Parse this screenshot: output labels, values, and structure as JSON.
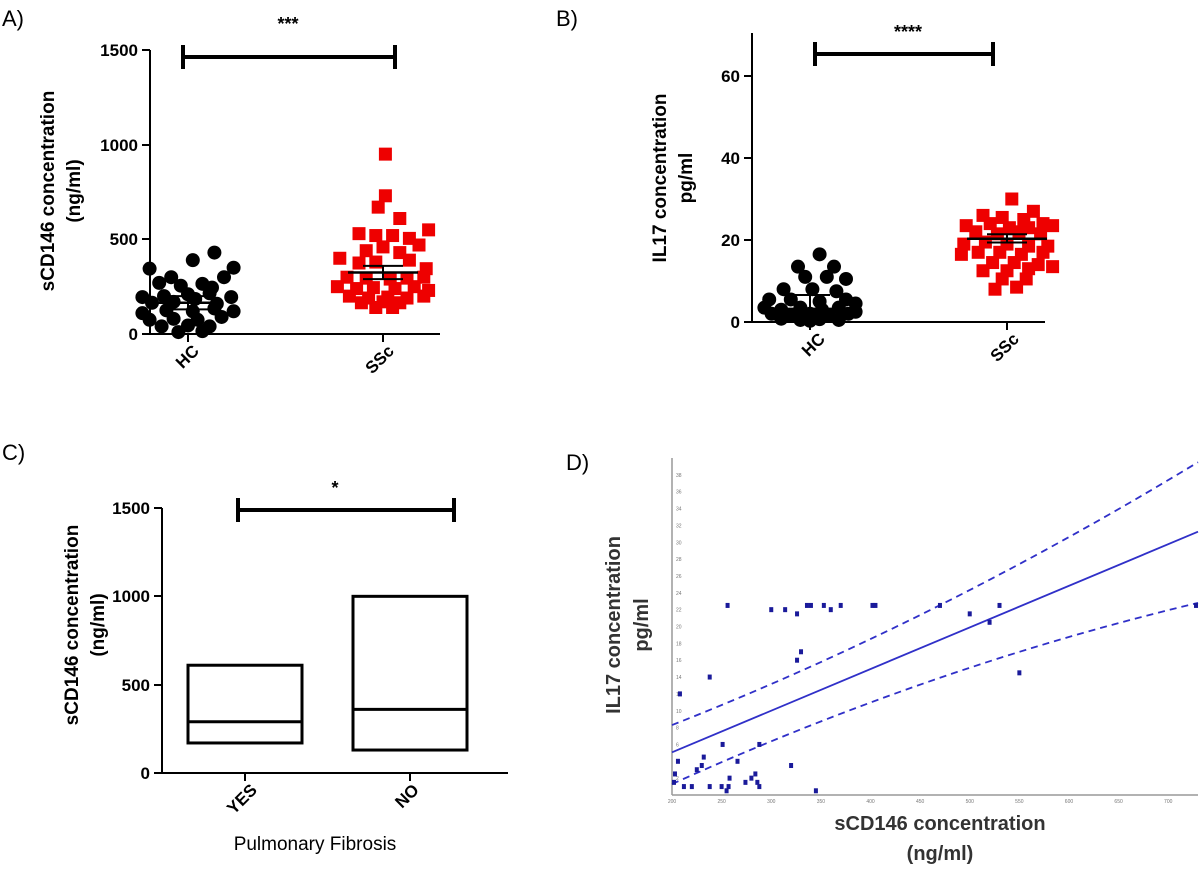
{
  "chart_data": [
    {
      "panel": "A)",
      "type": "scatter",
      "ylabel_line1": "sCD146 concentration",
      "ylabel_line2": "(ng/ml)",
      "ylim": [
        0,
        1500
      ],
      "yticks": [
        "0",
        "500",
        "1000",
        "1500"
      ],
      "categories": [
        "HC",
        "SSc"
      ],
      "significance": "***",
      "colors": [
        "#000000",
        "#ee0000"
      ],
      "markers": [
        "circle",
        "square"
      ],
      "series": [
        {
          "name": "HC",
          "mean": 165,
          "err_low": 130,
          "err_high": 200,
          "points": [
            [
              -0.8,
              345
            ],
            [
              -0.35,
              300
            ],
            [
              0.1,
              390
            ],
            [
              0.55,
              430
            ],
            [
              0.95,
              350
            ],
            [
              -0.6,
              270
            ],
            [
              -0.15,
              255
            ],
            [
              0.3,
              265
            ],
            [
              0.75,
              300
            ],
            [
              0.5,
              245
            ],
            [
              -0.95,
              195
            ],
            [
              -0.5,
              200
            ],
            [
              0,
              210
            ],
            [
              0.45,
              215
            ],
            [
              0.9,
              195
            ],
            [
              -0.75,
              165
            ],
            [
              -0.3,
              170
            ],
            [
              0.15,
              185
            ],
            [
              0.6,
              160
            ],
            [
              -0.95,
              110
            ],
            [
              -0.45,
              125
            ],
            [
              0.1,
              120
            ],
            [
              0.55,
              135
            ],
            [
              0.95,
              120
            ],
            [
              -0.8,
              75
            ],
            [
              -0.3,
              80
            ],
            [
              0.2,
              75
            ],
            [
              0.7,
              90
            ],
            [
              -0.55,
              40
            ],
            [
              0,
              45
            ],
            [
              0.45,
              40
            ],
            [
              -0.2,
              10
            ],
            [
              0.3,
              15
            ]
          ]
        },
        {
          "name": "SSc",
          "mean": 325,
          "err_low": 290,
          "err_high": 360,
          "points": [
            [
              0.05,
              950
            ],
            [
              0.05,
              730
            ],
            [
              -0.1,
              670
            ],
            [
              0.35,
              610
            ],
            [
              -0.5,
              530
            ],
            [
              -0.15,
              520
            ],
            [
              0.2,
              520
            ],
            [
              0.55,
              505
            ],
            [
              0.95,
              550
            ],
            [
              -0.35,
              440
            ],
            [
              0,
              460
            ],
            [
              0.35,
              430
            ],
            [
              0.75,
              470
            ],
            [
              -0.9,
              400
            ],
            [
              -0.5,
              375
            ],
            [
              -0.15,
              380
            ],
            [
              0.55,
              390
            ],
            [
              0.9,
              345
            ],
            [
              -0.75,
              300
            ],
            [
              -0.35,
              295
            ],
            [
              0.15,
              290
            ],
            [
              0.5,
              295
            ],
            [
              0.85,
              300
            ],
            [
              -0.95,
              250
            ],
            [
              -0.55,
              240
            ],
            [
              -0.2,
              245
            ],
            [
              0.25,
              240
            ],
            [
              0.65,
              250
            ],
            [
              0.95,
              230
            ],
            [
              -0.7,
              200
            ],
            [
              -0.3,
              190
            ],
            [
              0.1,
              195
            ],
            [
              0.5,
              190
            ],
            [
              0.85,
              200
            ],
            [
              -0.45,
              165
            ],
            [
              0,
              170
            ],
            [
              0.35,
              165
            ],
            [
              -0.15,
              140
            ],
            [
              0.2,
              140
            ]
          ]
        }
      ]
    },
    {
      "panel": "B)",
      "type": "scatter",
      "ylabel_line1": "IL17 concentration",
      "ylabel_line2": "pg/ml",
      "ylim": [
        0,
        70
      ],
      "yticks": [
        "0",
        "20",
        "40",
        "60"
      ],
      "categories": [
        "HC",
        "SSc"
      ],
      "significance": "****",
      "colors": [
        "#000000",
        "#ee0000"
      ],
      "markers": [
        "circle",
        "square"
      ],
      "series": [
        {
          "name": "HC",
          "mean": 3.2,
          "err_low": 0,
          "err_high": 6.6,
          "points": [
            [
              0.2,
              16.5
            ],
            [
              -0.25,
              13.5
            ],
            [
              0.5,
              13.5
            ],
            [
              -0.1,
              11
            ],
            [
              0.35,
              11
            ],
            [
              0.75,
              10.5
            ],
            [
              -0.55,
              8
            ],
            [
              0.05,
              8
            ],
            [
              0.55,
              7.5
            ],
            [
              -0.85,
              5.5
            ],
            [
              -0.4,
              5.5
            ],
            [
              0.2,
              5
            ],
            [
              0.75,
              5.5
            ],
            [
              0.95,
              4.5
            ],
            [
              -0.95,
              3.5
            ],
            [
              -0.6,
              3
            ],
            [
              -0.2,
              3.5
            ],
            [
              0.25,
              3
            ],
            [
              0.6,
              3.5
            ],
            [
              0.95,
              2.5
            ],
            [
              -0.8,
              2
            ],
            [
              -0.4,
              1.5
            ],
            [
              0,
              2
            ],
            [
              0.4,
              1.5
            ],
            [
              0.8,
              2
            ],
            [
              -0.6,
              0.8
            ],
            [
              -0.2,
              0.5
            ],
            [
              0.2,
              0.7
            ],
            [
              0.6,
              0.5
            ],
            [
              0,
              0.3
            ]
          ]
        },
        {
          "name": "SSc",
          "mean": 20.3,
          "err_low": 19.4,
          "err_high": 21.4,
          "points": [
            [
              0.1,
              30
            ],
            [
              0.55,
              27
            ],
            [
              -0.5,
              26
            ],
            [
              -0.1,
              25.5
            ],
            [
              0.35,
              25
            ],
            [
              0.75,
              24
            ],
            [
              -0.85,
              23.5
            ],
            [
              -0.35,
              24
            ],
            [
              0.05,
              23
            ],
            [
              0.45,
              23
            ],
            [
              0.95,
              23.5
            ],
            [
              -0.65,
              22
            ],
            [
              -0.2,
              21.5
            ],
            [
              0.25,
              22
            ],
            [
              0.7,
              21.5
            ],
            [
              -0.9,
              19
            ],
            [
              -0.45,
              19.5
            ],
            [
              0,
              19
            ],
            [
              0.45,
              18.5
            ],
            [
              0.85,
              18.5
            ],
            [
              -0.95,
              16.5
            ],
            [
              -0.6,
              17
            ],
            [
              -0.15,
              17
            ],
            [
              0.3,
              16.5
            ],
            [
              0.75,
              17
            ],
            [
              -0.3,
              14.5
            ],
            [
              0.15,
              14.5
            ],
            [
              0.65,
              14
            ],
            [
              0.95,
              13.5
            ],
            [
              -0.5,
              12.5
            ],
            [
              0,
              12.5
            ],
            [
              0.45,
              13
            ],
            [
              -0.1,
              10.5
            ],
            [
              0.4,
              10.5
            ],
            [
              -0.25,
              8
            ],
            [
              0.2,
              8.5
            ]
          ]
        }
      ]
    },
    {
      "panel": "C)",
      "type": "box",
      "ylabel_line1": "sCD146 concentration",
      "ylabel_line2": "(ng/ml)",
      "xlabel": "Pulmonary Fibrosis",
      "ylim": [
        0,
        1500
      ],
      "yticks": [
        "0",
        "500",
        "1000",
        "1500"
      ],
      "categories": [
        "YES",
        "NO"
      ],
      "significance": "*",
      "boxes": [
        {
          "name": "YES",
          "min": 170,
          "median": 290,
          "max": 610
        },
        {
          "name": "NO",
          "min": 130,
          "median": 360,
          "max": 1000
        }
      ]
    },
    {
      "panel": "D)",
      "type": "scatter",
      "ylabel_line1": "IL17 concentration",
      "ylabel_line2": "pg/ml",
      "xlabel_line1": "sCD146 concentration",
      "xlabel_line2": "(ng/ml)",
      "xlim": [
        200,
        730
      ],
      "ylim": [
        0,
        40
      ],
      "xticks": [
        "200",
        "250",
        "300",
        "350",
        "400",
        "450",
        "500",
        "550",
        "600",
        "650",
        "700"
      ],
      "yticks": [
        "2",
        "4",
        "6",
        "8",
        "10",
        "12",
        "14",
        "16",
        "18",
        "20",
        "22",
        "24",
        "26",
        "28",
        "30",
        "32",
        "34",
        "36",
        "38"
      ],
      "color": "#3030c8",
      "regression": {
        "slope": 0.0494,
        "intercept": -4.81,
        "ci_low_start": 1.3,
        "ci_low_end": 22.8,
        "ci_high_start": 8.3,
        "ci_high_end": 39.5
      },
      "points": [
        [
          203,
          2.5
        ],
        [
          202,
          1.5
        ],
        [
          206,
          4
        ],
        [
          208,
          12
        ],
        [
          212,
          1
        ],
        [
          220,
          1
        ],
        [
          225,
          3
        ],
        [
          230,
          3.5
        ],
        [
          232,
          4.5
        ],
        [
          238,
          1
        ],
        [
          238,
          14
        ],
        [
          250,
          1
        ],
        [
          251,
          6
        ],
        [
          255,
          0.5
        ],
        [
          256,
          22.5
        ],
        [
          257,
          1
        ],
        [
          258,
          2
        ],
        [
          266,
          4
        ],
        [
          274,
          1.5
        ],
        [
          280,
          2
        ],
        [
          284,
          2.5
        ],
        [
          286,
          1.5
        ],
        [
          288,
          6
        ],
        [
          288,
          1
        ],
        [
          300,
          22
        ],
        [
          314,
          22
        ],
        [
          320,
          3.5
        ],
        [
          326,
          21.5
        ],
        [
          326,
          16
        ],
        [
          330,
          17
        ],
        [
          336,
          22.5
        ],
        [
          340,
          22.5
        ],
        [
          345,
          0.5
        ],
        [
          353,
          22.5
        ],
        [
          360,
          22
        ],
        [
          370,
          22.5
        ],
        [
          402,
          22.5
        ],
        [
          405,
          22.5
        ],
        [
          470,
          22.5
        ],
        [
          500,
          21.5
        ],
        [
          520,
          20.5
        ],
        [
          530,
          22.5
        ],
        [
          550,
          14.5
        ],
        [
          728,
          22.5
        ]
      ]
    }
  ]
}
